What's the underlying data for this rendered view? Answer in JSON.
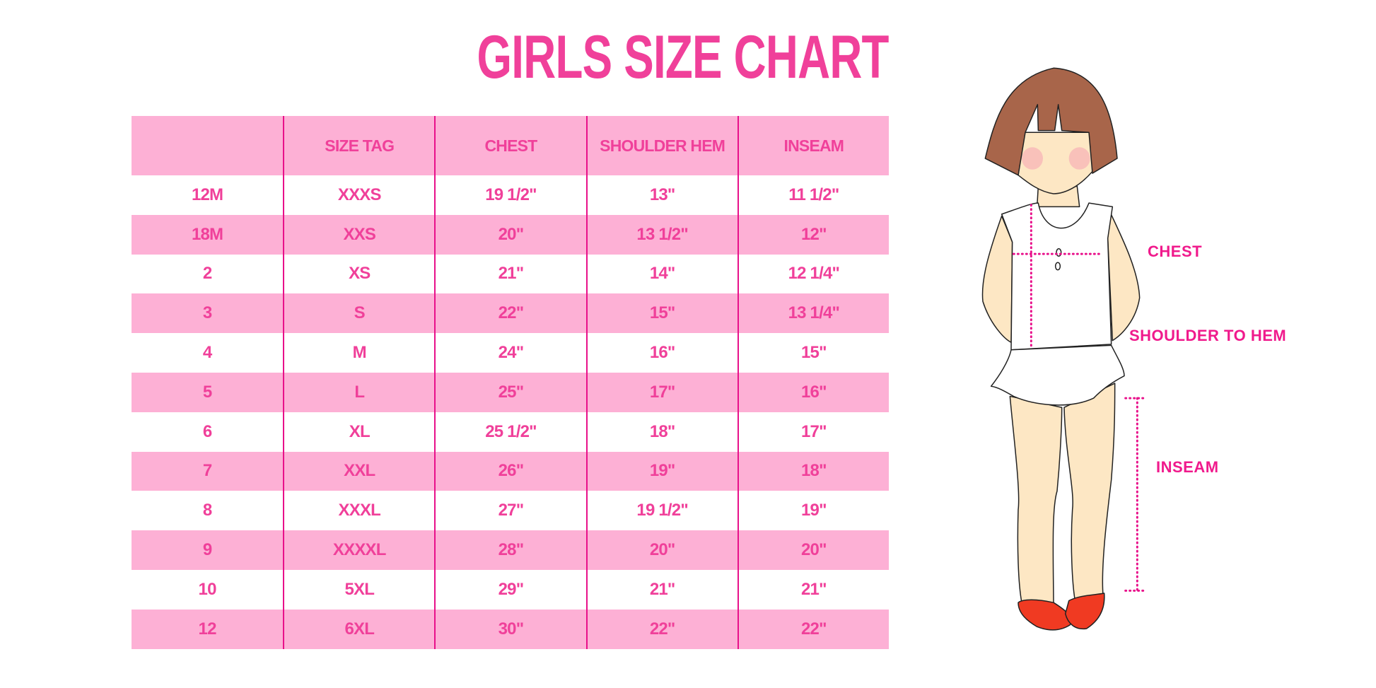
{
  "title": "GIRLS SIZE CHART",
  "colors": {
    "text": "#f0409a",
    "band": "#fdb0d5",
    "divider": "#e8108a",
    "label": "#f01a8c"
  },
  "table": {
    "headers": [
      "",
      "SIZE TAG",
      "CHEST",
      "SHOULDER HEM",
      "INSEAM"
    ],
    "rows": [
      [
        "12M",
        "XXXS",
        "19 1/2\"",
        "13\"",
        "11 1/2\""
      ],
      [
        "18M",
        "XXS",
        "20\"",
        "13 1/2\"",
        "12\""
      ],
      [
        "2",
        "XS",
        "21\"",
        "14\"",
        "12 1/4\""
      ],
      [
        "3",
        "S",
        "22\"",
        "15\"",
        "13 1/4\""
      ],
      [
        "4",
        "M",
        "24\"",
        "16\"",
        "15\""
      ],
      [
        "5",
        "L",
        "25\"",
        "17\"",
        "16\""
      ],
      [
        "6",
        "XL",
        "25 1/2\"",
        "18\"",
        "17\""
      ],
      [
        "7",
        "XXL",
        "26\"",
        "19\"",
        "18\""
      ],
      [
        "8",
        "XXXL",
        "27\"",
        "19 1/2\"",
        "19\""
      ],
      [
        "9",
        "XXXXL",
        "28\"",
        "20\"",
        "20\""
      ],
      [
        "10",
        "5XL",
        "29\"",
        "21\"",
        "21\""
      ],
      [
        "12",
        "6XL",
        "30\"",
        "22\"",
        "22\""
      ]
    ]
  },
  "figure": {
    "icon": "girl-measurement-illustration",
    "labels": {
      "chest": "CHEST",
      "shoulder_to_hem": "SHOULDER TO HEM",
      "inseam": "INSEAM"
    }
  }
}
